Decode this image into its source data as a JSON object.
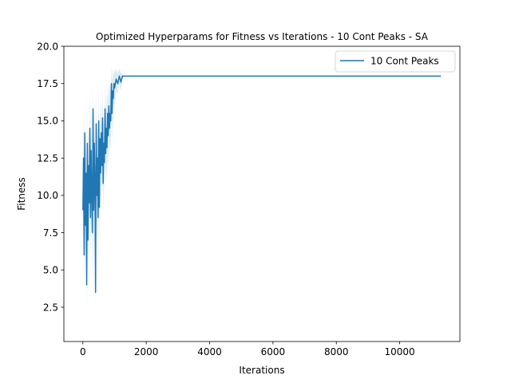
{
  "colors": {
    "series": "#1f77b4",
    "band": "#1f77b4",
    "axis": "#000000",
    "background": "#ffffff"
  },
  "chart_data": {
    "type": "line",
    "title": "Optimized Hyperparams for Fitness vs Iterations - 10 Cont Peaks - SA",
    "xlabel": "Iterations",
    "ylabel": "Fitness",
    "xlim": [
      -600,
      11900
    ],
    "ylim": [
      0.2,
      20
    ],
    "xticks": [
      0,
      2000,
      4000,
      6000,
      8000,
      10000
    ],
    "xtick_labels": [
      "0",
      "2000",
      "4000",
      "6000",
      "8000",
      "10000"
    ],
    "yticks": [
      2.5,
      5.0,
      7.5,
      10.0,
      12.5,
      15.0,
      17.5,
      20.0
    ],
    "ytick_labels": [
      "2.5",
      "5.0",
      "7.5",
      "10.0",
      "12.5",
      "15.0",
      "17.5",
      "20.0"
    ],
    "grid": false,
    "legend_position": "upper right",
    "series": [
      {
        "name": "10 Cont Peaks",
        "x": [
          0,
          20,
          40,
          60,
          80,
          100,
          120,
          140,
          160,
          180,
          200,
          220,
          240,
          260,
          280,
          300,
          320,
          340,
          360,
          380,
          400,
          420,
          440,
          460,
          480,
          500,
          520,
          540,
          560,
          580,
          600,
          620,
          640,
          660,
          680,
          700,
          720,
          740,
          760,
          780,
          800,
          820,
          840,
          860,
          880,
          900,
          920,
          940,
          960,
          980,
          1000,
          1050,
          1100,
          1150,
          1200,
          1250,
          1300,
          1350,
          1400,
          2000,
          4000,
          6000,
          8000,
          10000,
          11300
        ],
        "y": [
          9.0,
          12.5,
          6.0,
          14.2,
          8.0,
          11.5,
          4.0,
          13.5,
          7.0,
          12.0,
          9.5,
          14.5,
          8.5,
          13.0,
          10.0,
          7.5,
          15.8,
          9.0,
          13.5,
          11.0,
          3.5,
          14.8,
          10.0,
          12.5,
          8.5,
          15.0,
          9.2,
          13.8,
          11.5,
          14.2,
          12.0,
          15.2,
          10.8,
          13.5,
          12.2,
          15.8,
          12.8,
          14.5,
          13.2,
          15.5,
          14.0,
          16.0,
          14.5,
          15.5,
          15.0,
          17.5,
          15.5,
          17.0,
          16.5,
          17.5,
          17.2,
          17.8,
          17.5,
          18.0,
          17.6,
          18.0,
          18.0,
          18.0,
          18.0,
          18.0,
          18.0,
          18.0,
          18.0,
          18.0,
          18.0
        ],
        "band_low": [
          6.5,
          9.0,
          3.5,
          10.5,
          5.0,
          8.0,
          2.0,
          9.5,
          4.5,
          8.5,
          6.5,
          10.5,
          5.5,
          9.5,
          7.0,
          4.5,
          12.0,
          6.0,
          10.0,
          8.0,
          2.5,
          11.0,
          7.0,
          9.0,
          6.0,
          11.5,
          7.0,
          10.5,
          9.0,
          11.5,
          9.5,
          12.5,
          8.5,
          11.0,
          10.0,
          13.0,
          10.5,
          12.0,
          11.0,
          13.0,
          11.8,
          14.0,
          12.5,
          13.5,
          13.0,
          15.5,
          13.5,
          15.0,
          15.0,
          16.2,
          16.0,
          17.0,
          16.8,
          17.5,
          17.0,
          17.8,
          18.0,
          18.0,
          18.0,
          18.0,
          18.0,
          18.0,
          18.0,
          18.0,
          18.0
        ],
        "band_high": [
          11.5,
          15.5,
          8.5,
          17.0,
          10.5,
          14.5,
          6.5,
          16.5,
          9.5,
          15.0,
          12.5,
          17.5,
          11.0,
          16.0,
          13.0,
          10.5,
          18.0,
          12.0,
          16.5,
          14.0,
          5.0,
          17.5,
          13.0,
          15.5,
          11.0,
          17.8,
          11.5,
          16.5,
          14.0,
          16.8,
          14.5,
          17.5,
          13.0,
          16.0,
          14.5,
          18.0,
          15.0,
          17.0,
          15.5,
          17.8,
          16.2,
          18.0,
          16.5,
          17.5,
          17.0,
          18.8,
          17.5,
          18.5,
          18.0,
          18.5,
          18.2,
          18.5,
          18.2,
          18.5,
          18.2,
          18.2,
          18.0,
          18.0,
          18.0,
          18.0,
          18.0,
          18.0,
          18.0,
          18.0,
          18.0
        ]
      }
    ]
  }
}
